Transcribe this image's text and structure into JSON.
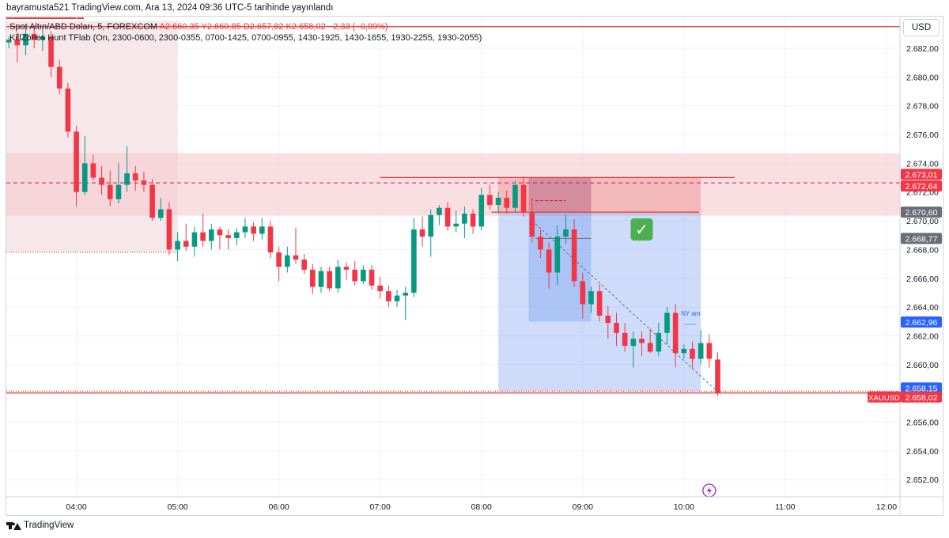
{
  "header": {
    "text": "bayramusta521 TradingView.com, Ara 13, 2024 09:36 UTC-5 tarihinde yayınlandı"
  },
  "legend": {
    "symbol": "Spot Altın/ABD Doları, 5, FOREXCOM",
    "ohlc": "A2.660,35  Y2.660,85  D2.657,82  K2.658,02  −2,33 (−0,09%)",
    "indicator": "KillZones Hunt TFlab (On, 2300-0600, 2300-0355, 0700-1425, 0700-0955, 1430-1925, 1430-1655, 1930-2255, 1930-2055)"
  },
  "currency": "USD",
  "footer": {
    "brand": "TradingView"
  },
  "colors": {
    "up": "#089981",
    "down": "#f23645",
    "zone": "#f7c9cf",
    "session": "#f3e0e3",
    "stop": "#ef9a9a",
    "target": "#5c8cf0",
    "level": "#e53935",
    "badge_red": "#f23645",
    "badge_gray": "#6a6d78",
    "badge_blue": "#2962ff"
  },
  "chart_data": {
    "type": "candlestick",
    "symbol": "XAUUSD",
    "timeframe": "5",
    "ylim": [
      2650.8,
      2684.2
    ],
    "y_ticks": [
      2652,
      2654,
      2656,
      2658,
      2660,
      2662,
      2664,
      2666,
      2668,
      2670,
      2672,
      2674,
      2676,
      2678,
      2680,
      2682
    ],
    "y_tick_labels": [
      "2.652,00",
      "2.654,00",
      "2.656,00",
      "2.658,00",
      "2.660,00",
      "2.662,00",
      "2.664,00",
      "2.666,00",
      "2.668,00",
      "2.670,00",
      "2.672,00",
      "2.674,00",
      "2.676,00",
      "2.678,00",
      "2.680,00",
      "2.682,00"
    ],
    "x_ticks": [
      {
        "label": "04:00",
        "t": 240
      },
      {
        "label": "05:00",
        "t": 300
      },
      {
        "label": "06:00",
        "t": 360
      },
      {
        "label": "07:00",
        "t": 420
      },
      {
        "label": "08:00",
        "t": 480
      },
      {
        "label": "09:00",
        "t": 540
      },
      {
        "label": "10:00",
        "t": 600
      },
      {
        "label": "11:00",
        "t": 660
      },
      {
        "label": "12:00",
        "t": 720
      }
    ],
    "xlim_minutes": [
      198.5,
      728
    ],
    "candles": [
      {
        "t": 200,
        "o": 2682.4,
        "h": 2682.8,
        "l": 2682.0,
        "c": 2682.6
      },
      {
        "t": 205,
        "o": 2682.6,
        "h": 2683.1,
        "l": 2681.0,
        "c": 2682.2
      },
      {
        "t": 210,
        "o": 2682.2,
        "h": 2683.4,
        "l": 2681.5,
        "c": 2683.0
      },
      {
        "t": 215,
        "o": 2683.0,
        "h": 2683.6,
        "l": 2682.0,
        "c": 2682.6
      },
      {
        "t": 220,
        "o": 2682.6,
        "h": 2683.5,
        "l": 2681.8,
        "c": 2682.8
      },
      {
        "t": 225,
        "o": 2682.8,
        "h": 2683.2,
        "l": 2680.0,
        "c": 2680.7
      },
      {
        "t": 230,
        "o": 2680.7,
        "h": 2681.2,
        "l": 2678.8,
        "c": 2679.2
      },
      {
        "t": 235,
        "o": 2679.2,
        "h": 2679.6,
        "l": 2675.8,
        "c": 2676.2
      },
      {
        "t": 240,
        "o": 2676.2,
        "h": 2676.6,
        "l": 2671.0,
        "c": 2672.0
      },
      {
        "t": 245,
        "o": 2672.0,
        "h": 2675.9,
        "l": 2671.8,
        "c": 2674.0
      },
      {
        "t": 250,
        "o": 2674.0,
        "h": 2674.6,
        "l": 2672.8,
        "c": 2673.0
      },
      {
        "t": 255,
        "o": 2673.0,
        "h": 2673.8,
        "l": 2671.8,
        "c": 2672.5
      },
      {
        "t": 260,
        "o": 2672.5,
        "h": 2673.5,
        "l": 2671.0,
        "c": 2671.5
      },
      {
        "t": 265,
        "o": 2671.5,
        "h": 2674.0,
        "l": 2671.2,
        "c": 2672.5
      },
      {
        "t": 270,
        "o": 2672.5,
        "h": 2675.2,
        "l": 2672.0,
        "c": 2673.3
      },
      {
        "t": 275,
        "o": 2673.3,
        "h": 2673.8,
        "l": 2672.1,
        "c": 2672.8
      },
      {
        "t": 280,
        "o": 2672.8,
        "h": 2673.4,
        "l": 2672.0,
        "c": 2672.5
      },
      {
        "t": 285,
        "o": 2672.5,
        "h": 2672.9,
        "l": 2670.0,
        "c": 2670.2
      },
      {
        "t": 290,
        "o": 2670.2,
        "h": 2671.6,
        "l": 2670.0,
        "c": 2670.8
      },
      {
        "t": 295,
        "o": 2670.8,
        "h": 2671.3,
        "l": 2667.6,
        "c": 2668.0
      },
      {
        "t": 300,
        "o": 2668.0,
        "h": 2669.2,
        "l": 2667.2,
        "c": 2668.6
      },
      {
        "t": 305,
        "o": 2668.6,
        "h": 2669.8,
        "l": 2667.9,
        "c": 2668.2
      },
      {
        "t": 310,
        "o": 2668.2,
        "h": 2669.6,
        "l": 2667.5,
        "c": 2669.2
      },
      {
        "t": 315,
        "o": 2669.2,
        "h": 2670.5,
        "l": 2668.2,
        "c": 2668.6
      },
      {
        "t": 320,
        "o": 2668.6,
        "h": 2669.8,
        "l": 2668.0,
        "c": 2669.4
      },
      {
        "t": 325,
        "o": 2669.4,
        "h": 2669.6,
        "l": 2668.0,
        "c": 2669.0
      },
      {
        "t": 330,
        "o": 2669.0,
        "h": 2669.4,
        "l": 2668.0,
        "c": 2668.8
      },
      {
        "t": 335,
        "o": 2668.8,
        "h": 2669.5,
        "l": 2668.3,
        "c": 2669.2
      },
      {
        "t": 340,
        "o": 2669.2,
        "h": 2670.2,
        "l": 2668.8,
        "c": 2669.6
      },
      {
        "t": 345,
        "o": 2669.6,
        "h": 2669.9,
        "l": 2668.6,
        "c": 2669.1
      },
      {
        "t": 350,
        "o": 2669.1,
        "h": 2670.2,
        "l": 2668.7,
        "c": 2669.6
      },
      {
        "t": 355,
        "o": 2669.6,
        "h": 2670.0,
        "l": 2667.4,
        "c": 2667.8
      },
      {
        "t": 360,
        "o": 2667.8,
        "h": 2668.2,
        "l": 2665.8,
        "c": 2666.8
      },
      {
        "t": 365,
        "o": 2666.8,
        "h": 2668.2,
        "l": 2666.4,
        "c": 2667.6
      },
      {
        "t": 370,
        "o": 2667.6,
        "h": 2669.5,
        "l": 2667.0,
        "c": 2667.3
      },
      {
        "t": 375,
        "o": 2667.3,
        "h": 2667.7,
        "l": 2666.3,
        "c": 2666.6
      },
      {
        "t": 380,
        "o": 2666.6,
        "h": 2667.0,
        "l": 2664.9,
        "c": 2665.4
      },
      {
        "t": 385,
        "o": 2665.4,
        "h": 2666.8,
        "l": 2665.0,
        "c": 2666.5
      },
      {
        "t": 390,
        "o": 2666.5,
        "h": 2666.8,
        "l": 2665.1,
        "c": 2665.3
      },
      {
        "t": 395,
        "o": 2665.3,
        "h": 2667.3,
        "l": 2665.0,
        "c": 2666.8
      },
      {
        "t": 400,
        "o": 2666.8,
        "h": 2667.1,
        "l": 2665.9,
        "c": 2666.6
      },
      {
        "t": 405,
        "o": 2666.6,
        "h": 2667.2,
        "l": 2665.5,
        "c": 2665.8
      },
      {
        "t": 410,
        "o": 2665.8,
        "h": 2666.9,
        "l": 2665.6,
        "c": 2666.6
      },
      {
        "t": 415,
        "o": 2666.6,
        "h": 2666.9,
        "l": 2665.2,
        "c": 2665.5
      },
      {
        "t": 420,
        "o": 2665.5,
        "h": 2666.1,
        "l": 2664.6,
        "c": 2665.1
      },
      {
        "t": 425,
        "o": 2665.1,
        "h": 2665.5,
        "l": 2664.0,
        "c": 2664.4
      },
      {
        "t": 430,
        "o": 2664.4,
        "h": 2665.2,
        "l": 2664.0,
        "c": 2664.8
      },
      {
        "t": 435,
        "o": 2664.8,
        "h": 2665.4,
        "l": 2663.1,
        "c": 2665.0
      },
      {
        "t": 440,
        "o": 2665.0,
        "h": 2670.2,
        "l": 2664.7,
        "c": 2669.4
      },
      {
        "t": 445,
        "o": 2669.4,
        "h": 2670.3,
        "l": 2668.2,
        "c": 2668.9
      },
      {
        "t": 450,
        "o": 2668.9,
        "h": 2670.8,
        "l": 2667.5,
        "c": 2670.4
      },
      {
        "t": 455,
        "o": 2670.4,
        "h": 2671.1,
        "l": 2669.7,
        "c": 2670.9
      },
      {
        "t": 460,
        "o": 2670.9,
        "h": 2671.3,
        "l": 2669.3,
        "c": 2669.6
      },
      {
        "t": 465,
        "o": 2669.6,
        "h": 2670.7,
        "l": 2669.2,
        "c": 2669.8
      },
      {
        "t": 470,
        "o": 2669.8,
        "h": 2671.0,
        "l": 2668.8,
        "c": 2670.5
      },
      {
        "t": 475,
        "o": 2670.5,
        "h": 2670.8,
        "l": 2669.1,
        "c": 2669.6
      },
      {
        "t": 480,
        "o": 2669.6,
        "h": 2672.3,
        "l": 2669.3,
        "c": 2671.8
      },
      {
        "t": 485,
        "o": 2671.8,
        "h": 2672.5,
        "l": 2670.8,
        "c": 2671.1
      },
      {
        "t": 490,
        "o": 2671.1,
        "h": 2672.0,
        "l": 2670.5,
        "c": 2671.6
      },
      {
        "t": 495,
        "o": 2671.6,
        "h": 2672.1,
        "l": 2670.5,
        "c": 2670.9
      },
      {
        "t": 500,
        "o": 2670.9,
        "h": 2672.8,
        "l": 2670.6,
        "c": 2672.5
      },
      {
        "t": 505,
        "o": 2672.5,
        "h": 2673.1,
        "l": 2670.3,
        "c": 2670.6
      },
      {
        "t": 510,
        "o": 2670.6,
        "h": 2671.6,
        "l": 2668.5,
        "c": 2668.9
      },
      {
        "t": 515,
        "o": 2668.9,
        "h": 2669.4,
        "l": 2667.4,
        "c": 2668.0
      },
      {
        "t": 520,
        "o": 2668.0,
        "h": 2668.5,
        "l": 2665.3,
        "c": 2666.4
      },
      {
        "t": 525,
        "o": 2666.4,
        "h": 2669.7,
        "l": 2665.5,
        "c": 2668.9
      },
      {
        "t": 530,
        "o": 2668.9,
        "h": 2670.4,
        "l": 2668.4,
        "c": 2669.4
      },
      {
        "t": 535,
        "o": 2669.4,
        "h": 2670.1,
        "l": 2665.4,
        "c": 2665.8
      },
      {
        "t": 540,
        "o": 2665.8,
        "h": 2666.4,
        "l": 2663.2,
        "c": 2664.2
      },
      {
        "t": 545,
        "o": 2664.2,
        "h": 2665.4,
        "l": 2663.6,
        "c": 2665.1
      },
      {
        "t": 550,
        "o": 2665.1,
        "h": 2665.6,
        "l": 2663.0,
        "c": 2663.4
      },
      {
        "t": 555,
        "o": 2663.4,
        "h": 2664.1,
        "l": 2661.8,
        "c": 2662.9
      },
      {
        "t": 560,
        "o": 2662.9,
        "h": 2663.6,
        "l": 2661.3,
        "c": 2662.2
      },
      {
        "t": 565,
        "o": 2662.2,
        "h": 2662.9,
        "l": 2660.9,
        "c": 2661.3
      },
      {
        "t": 570,
        "o": 2661.3,
        "h": 2662.3,
        "l": 2659.8,
        "c": 2661.8
      },
      {
        "t": 575,
        "o": 2661.8,
        "h": 2662.3,
        "l": 2660.6,
        "c": 2661.5
      },
      {
        "t": 580,
        "o": 2661.5,
        "h": 2662.5,
        "l": 2660.8,
        "c": 2660.9
      },
      {
        "t": 585,
        "o": 2660.9,
        "h": 2662.9,
        "l": 2660.6,
        "c": 2662.2
      },
      {
        "t": 590,
        "o": 2662.2,
        "h": 2664.0,
        "l": 2661.4,
        "c": 2663.6
      },
      {
        "t": 595,
        "o": 2663.6,
        "h": 2664.2,
        "l": 2659.8,
        "c": 2660.8
      },
      {
        "t": 600,
        "o": 2660.8,
        "h": 2661.4,
        "l": 2660.4,
        "c": 2661.1
      },
      {
        "t": 605,
        "o": 2661.1,
        "h": 2661.6,
        "l": 2659.7,
        "c": 2660.4
      },
      {
        "t": 610,
        "o": 2660.4,
        "h": 2662.4,
        "l": 2660.0,
        "c": 2661.5
      },
      {
        "t": 615,
        "o": 2661.5,
        "h": 2662.1,
        "l": 2659.8,
        "c": 2660.4
      },
      {
        "t": 620,
        "o": 2660.35,
        "h": 2660.85,
        "l": 2657.82,
        "c": 2658.02
      }
    ],
    "zones": [
      {
        "name": "session-box",
        "t0": 198.5,
        "t1": 300,
        "y0": 2667.8,
        "y1": 2683.9
      },
      {
        "name": "resistance-zone",
        "t0": 198.5,
        "t1": 728,
        "y0": 2670.35,
        "y1": 2674.7
      }
    ],
    "horizontal_levels": [
      {
        "name": "top-level",
        "value": 2683.5,
        "t0": 198.5,
        "t1": 728,
        "style": "solid"
      },
      {
        "name": "zone-mid",
        "value": 2672.64,
        "t0": 198.5,
        "t1": 728,
        "style": "dashed"
      },
      {
        "name": "nyam-high",
        "value": 2673.01,
        "t0": 420,
        "t1": 630,
        "style": "solid"
      },
      {
        "name": "entry-level",
        "value": 2670.6,
        "t0": 486,
        "t1": 609,
        "style": "solid"
      },
      {
        "name": "close-level",
        "value": 2658.02,
        "t0": 198.5,
        "t1": 728,
        "style": "solid"
      },
      {
        "name": "close-level-2",
        "value": 2658.15,
        "t0": 198.5,
        "t1": 728,
        "style": "dotted"
      }
    ],
    "short_position": {
      "t0": 490,
      "t1": 610,
      "stop": 2673.01,
      "entry": 2670.6,
      "target": 2658.15,
      "mark": "✓"
    },
    "inner_box": {
      "t0": 508,
      "t1": 545,
      "y_top": 2673.0,
      "y_bot": 2663.0
    },
    "annotation": {
      "label": "NY am",
      "t": 604,
      "value": 2663.4
    },
    "price_labels": [
      {
        "value": 2673.01,
        "text": "2.673,01",
        "color": "#f23645"
      },
      {
        "value": 2672.64,
        "text": "2.672,64",
        "color": "#f23645"
      },
      {
        "value": 2670.6,
        "text": "2.670,60",
        "color": "#6a6d78"
      },
      {
        "value": 2668.77,
        "text": "2.668,77",
        "color": "#6a6d78"
      },
      {
        "value": 2662.96,
        "text": "2.662,96",
        "color": "#2962ff"
      },
      {
        "value": 2658.15,
        "text": "2.658,15",
        "color": "#2962ff"
      },
      {
        "value": 2658.02,
        "text": "2.658,02",
        "color": "#f23645"
      }
    ],
    "last_price_tag": "XAUUSD"
  }
}
